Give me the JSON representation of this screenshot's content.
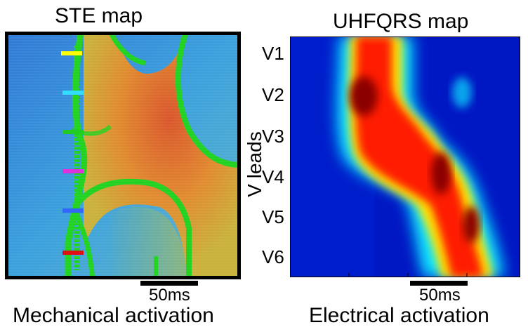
{
  "left_panel": {
    "title": "STE map",
    "scale_label": "50ms",
    "caption": "Mechanical activation",
    "markers": [
      {
        "color": "#ffff00"
      },
      {
        "color": "#33ddff"
      },
      {
        "color": "#22cc22"
      },
      {
        "color": "#dd33dd"
      },
      {
        "color": "#3366ff"
      },
      {
        "color": "#dd1111"
      }
    ]
  },
  "right_panel": {
    "title": "UHFQRS map",
    "axis_label": "V leads",
    "leads": [
      "V1",
      "V2",
      "V3",
      "V4",
      "V5",
      "V6"
    ],
    "scale_label": "50ms",
    "caption": "Electrical activation"
  },
  "colors": {
    "frame": "#000000",
    "ste_background": "#2a7fd0",
    "ste_activation": "#d96a28",
    "ste_boundary": "#1fd21f",
    "uhf_background": "#0022c8",
    "uhf_peak": "#b00000"
  }
}
